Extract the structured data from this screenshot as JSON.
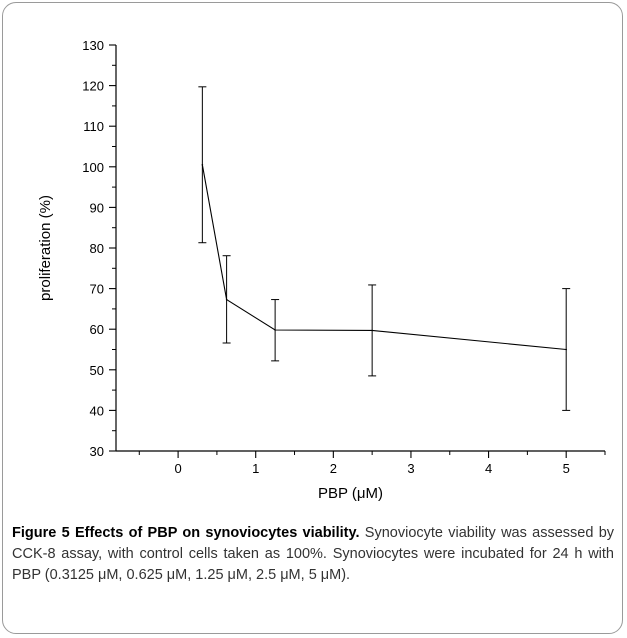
{
  "figure": {
    "label": "Figure 5",
    "title": "Effects of PBP on synoviocytes viability",
    "caption": "Synoviocyte viability was assessed by CCK-8 assay, with control cells taken as 100%. Synoviocytes were incubated for 24 h with PBP (0.3125 μM, 0.625 μM, 1.25 μM, 2.5 μM, 5 μM)."
  },
  "chart_data": {
    "type": "line",
    "xlabel": "PBP (μM)",
    "ylabel": "proliferation (%)",
    "xlim": [
      -0.8,
      5.5
    ],
    "ylim": [
      30,
      130
    ],
    "xticks": [
      0,
      1,
      2,
      3,
      4,
      5
    ],
    "yticks": [
      30,
      40,
      50,
      60,
      70,
      80,
      90,
      100,
      110,
      120,
      130
    ],
    "grid": false,
    "series": [
      {
        "x": [
          0.3125,
          0.625,
          1.25,
          2.5,
          5
        ],
        "y": [
          100.5,
          67.3,
          59.8,
          59.7,
          55.0
        ],
        "error_low": [
          81.3,
          56.6,
          52.2,
          48.5,
          40.0
        ],
        "error_high": [
          119.7,
          78.1,
          67.3,
          70.9,
          70.0
        ],
        "color": "#000000"
      }
    ]
  }
}
